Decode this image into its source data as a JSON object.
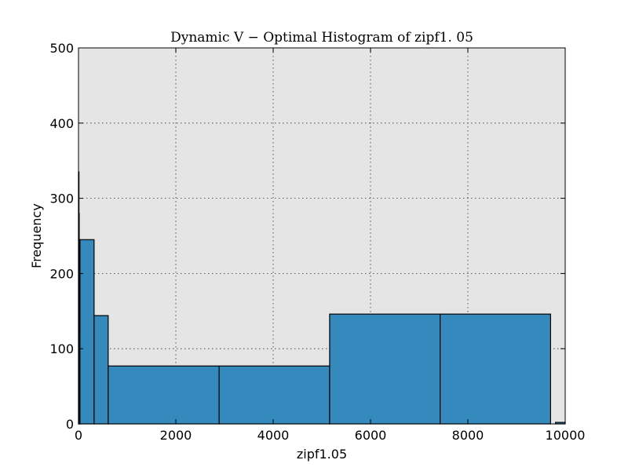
{
  "chart_data": {
    "type": "bar",
    "title": "Dynamic V − Optimal Histogram of zipf1. 05",
    "xlabel": "zipf1.05",
    "ylabel": "Frequency",
    "xlim": [
      0,
      10000
    ],
    "ylim": [
      0,
      500
    ],
    "xticks": [
      0,
      2000,
      4000,
      6000,
      8000,
      10000
    ],
    "yticks": [
      0,
      100,
      200,
      300,
      400,
      500
    ],
    "grid": true,
    "bins": [
      {
        "x0": 0,
        "x1": 5,
        "value": 335
      },
      {
        "x0": 5,
        "x1": 10,
        "value": 280
      },
      {
        "x0": 10,
        "x1": 30,
        "value": 120
      },
      {
        "x0": 30,
        "x1": 320,
        "value": 245
      },
      {
        "x0": 320,
        "x1": 610,
        "value": 144
      },
      {
        "x0": 610,
        "x1": 2890,
        "value": 77
      },
      {
        "x0": 2890,
        "x1": 5160,
        "value": 77
      },
      {
        "x0": 5160,
        "x1": 7430,
        "value": 146
      },
      {
        "x0": 7430,
        "x1": 9700,
        "value": 146
      },
      {
        "x0": 9800,
        "x1": 10000,
        "value": 2
      }
    ]
  }
}
